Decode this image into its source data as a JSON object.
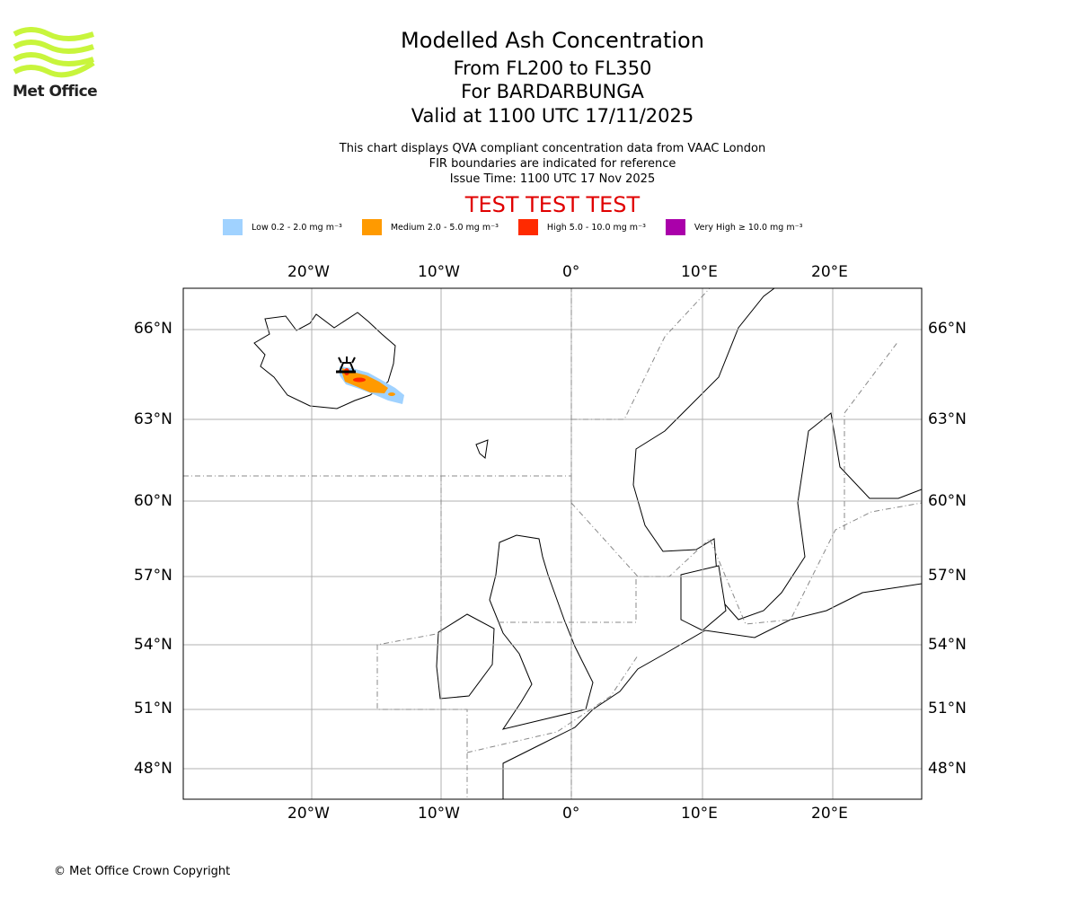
{
  "logo": {
    "text": "Met Office",
    "color": "#c8f53c"
  },
  "title": {
    "line1": "Modelled Ash Concentration",
    "line2": "From FL200 to FL350",
    "line3": "For BARDARBUNGA",
    "line4": "Valid at 1100 UTC 17/11/2025"
  },
  "subtitle": {
    "line1": "This chart displays QVA compliant concentration data from VAAC London",
    "line2": "FIR boundaries are indicated for reference",
    "line3": "Issue Time: 1100 UTC 17 Nov 2025"
  },
  "test_banner": "TEST TEST TEST",
  "legend": [
    {
      "label": "Low 0.2 - 2.0 mg m⁻³",
      "color": "#a0d2ff"
    },
    {
      "label": "Medium 2.0 - 5.0 mg m⁻³",
      "color": "#ff9a00"
    },
    {
      "label": "High 5.0 - 10.0 mg m⁻³",
      "color": "#ff2a00"
    },
    {
      "label": "Very High ≥ 10.0 mg m⁻³",
      "color": "#aa00aa"
    }
  ],
  "map": {
    "lon_labels": [
      "20°W",
      "10°W",
      "0°",
      "10°E",
      "20°E"
    ],
    "lat_labels": [
      "66°N",
      "63°N",
      "60°N",
      "57°N",
      "54°N",
      "51°N",
      "48°N"
    ],
    "volcano": "BARDARBUNGA"
  },
  "copyright": "© Met Office Crown Copyright"
}
